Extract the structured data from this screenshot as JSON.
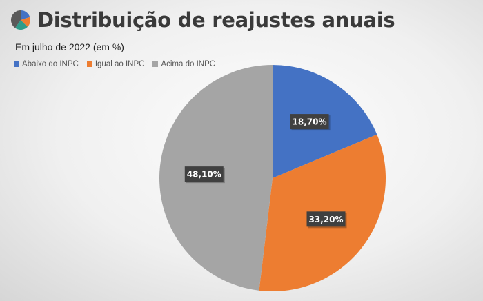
{
  "header": {
    "title": "Distribuição de reajustes anuais",
    "subtitle": "Em julho de 2022 (em %)",
    "logo_icon": "pie-chart-icon"
  },
  "colors": {
    "abaixo": "#4472C4",
    "igual": "#ED7D31",
    "acima": "#A5A5A5",
    "label_bg": "#404040"
  },
  "legend": [
    {
      "label": "Abaixo do INPC",
      "color": "#4472C4"
    },
    {
      "label": "Igual ao INPC",
      "color": "#ED7D31"
    },
    {
      "label": "Acima do INPC",
      "color": "#A5A5A5"
    }
  ],
  "chart_data": {
    "type": "pie",
    "title": "Distribuição de reajustes anuais",
    "subtitle": "Em julho de 2022 (em %)",
    "categories": [
      "Abaixo do INPC",
      "Igual ao INPC",
      "Acima do INPC"
    ],
    "values": [
      18.7,
      33.2,
      48.1
    ],
    "labels": [
      "18,70%",
      "33,20%",
      "48,10%"
    ],
    "colors": [
      "#4472C4",
      "#ED7D31",
      "#A5A5A5"
    ],
    "legend_position": "top-left"
  }
}
